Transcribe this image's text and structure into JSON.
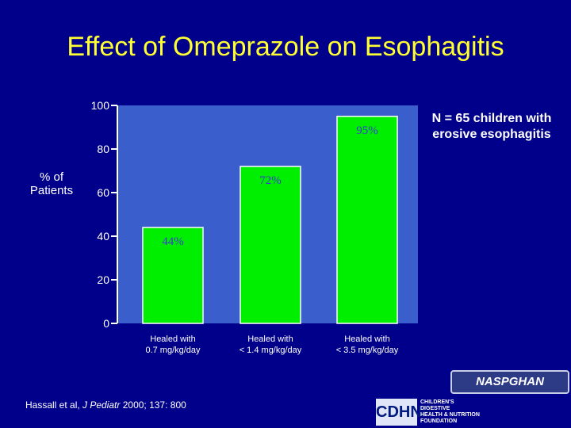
{
  "slide": {
    "title": "Effect of Omeprazole on Esophagitis",
    "note": "N = 65 children with erosive esophagitis",
    "citation_prefix": "Hassall et al, ",
    "citation_journal": "J Pediatr",
    "citation_suffix": " 2000; 137: 800",
    "logos": {
      "naspghan": "NASPGHAN",
      "cdhnf_mark": "CDHNF",
      "cdhnf_lines": [
        "CHILDREN'S DIGESTIVE",
        "HEALTH & NUTRITION",
        "FOUNDATION"
      ]
    }
  },
  "chart_data": {
    "type": "bar",
    "ylabel": "% of Patients",
    "ylim": [
      0,
      100
    ],
    "yticks": [
      0,
      20,
      40,
      60,
      80,
      100
    ],
    "categories": [
      [
        "Healed with",
        "0.7 mg/kg/day"
      ],
      [
        "Healed with",
        "< 1.4 mg/kg/day"
      ],
      [
        "Healed with",
        "< 3.5 mg/kg/day"
      ]
    ],
    "values": [
      44,
      72,
      95
    ],
    "value_labels": [
      "44%",
      "72%",
      "95%"
    ],
    "colors": {
      "plot_bg": "#3a5fcd",
      "bar": "#00ee00",
      "bar_edge": "#ffffff",
      "axis": "#ffffff",
      "value_label": "#3b3bd0",
      "tick_label": "#ffffff"
    }
  }
}
